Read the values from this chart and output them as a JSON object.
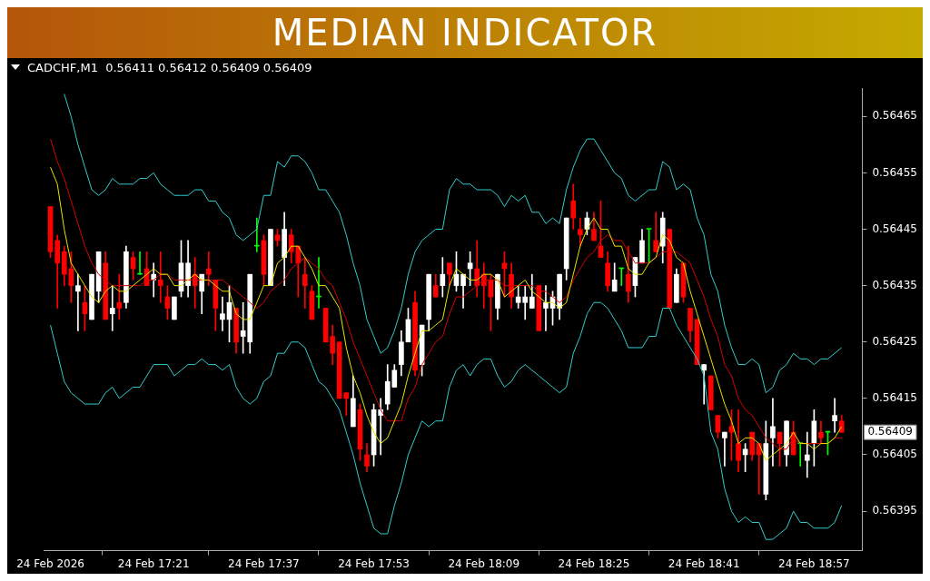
{
  "chart_data": {
    "type": "candlestick",
    "title": "MEDIAN INDICATOR",
    "subtitle": "CADCHF,M1  0.56411 0.56412 0.56409 0.56409",
    "x": [
      "2026-02-24T17:06",
      "2026-02-24T17:07",
      "2026-02-24T17:08",
      "2026-02-24T17:09",
      "2026-02-24T17:10",
      "2026-02-24T17:11",
      "2026-02-24T17:12",
      "2026-02-24T17:13",
      "2026-02-24T17:14",
      "2026-02-24T17:15",
      "2026-02-24T17:16",
      "2026-02-24T17:17",
      "2026-02-24T17:18",
      "2026-02-24T17:19",
      "2026-02-24T17:20",
      "2026-02-24T17:21",
      "2026-02-24T17:22",
      "2026-02-24T17:23",
      "2026-02-24T17:24",
      "2026-02-24T17:25",
      "2026-02-24T17:26",
      "2026-02-24T17:27",
      "2026-02-24T17:28",
      "2026-02-24T17:29",
      "2026-02-24T17:30",
      "2026-02-24T17:31",
      "2026-02-24T17:32",
      "2026-02-24T17:33",
      "2026-02-24T17:34",
      "2026-02-24T17:35",
      "2026-02-24T17:36",
      "2026-02-24T17:37",
      "2026-02-24T17:38",
      "2026-02-24T17:39",
      "2026-02-24T17:40",
      "2026-02-24T17:41",
      "2026-02-24T17:42",
      "2026-02-24T17:43",
      "2026-02-24T17:44",
      "2026-02-24T17:45",
      "2026-02-24T17:46",
      "2026-02-24T17:47",
      "2026-02-24T17:48",
      "2026-02-24T17:49",
      "2026-02-24T17:50",
      "2026-02-24T17:51",
      "2026-02-24T17:52",
      "2026-02-24T17:53",
      "2026-02-24T17:54",
      "2026-02-24T17:55",
      "2026-02-24T17:56",
      "2026-02-24T17:57",
      "2026-02-24T17:58",
      "2026-02-24T17:59",
      "2026-02-24T18:00",
      "2026-02-24T18:01",
      "2026-02-24T18:02",
      "2026-02-24T18:03",
      "2026-02-24T18:04",
      "2026-02-24T18:05",
      "2026-02-24T18:06",
      "2026-02-24T18:07",
      "2026-02-24T18:08",
      "2026-02-24T18:09",
      "2026-02-24T18:10",
      "2026-02-24T18:11",
      "2026-02-24T18:12",
      "2026-02-24T18:13",
      "2026-02-24T18:14",
      "2026-02-24T18:15",
      "2026-02-24T18:16",
      "2026-02-24T18:17",
      "2026-02-24T18:18",
      "2026-02-24T18:19",
      "2026-02-24T18:20",
      "2026-02-24T18:21",
      "2026-02-24T18:22",
      "2026-02-24T18:23",
      "2026-02-24T18:24",
      "2026-02-24T18:25",
      "2026-02-24T18:26",
      "2026-02-24T18:27",
      "2026-02-24T18:28",
      "2026-02-24T18:29",
      "2026-02-24T18:30",
      "2026-02-24T18:31",
      "2026-02-24T18:32",
      "2026-02-24T18:33",
      "2026-02-24T18:34",
      "2026-02-24T18:35",
      "2026-02-24T18:36",
      "2026-02-24T18:37",
      "2026-02-24T18:38",
      "2026-02-24T18:39",
      "2026-02-24T18:40",
      "2026-02-24T18:41",
      "2026-02-24T18:42",
      "2026-02-24T18:43",
      "2026-02-24T18:44",
      "2026-02-24T18:45",
      "2026-02-24T18:46",
      "2026-02-24T18:47",
      "2026-02-24T18:48",
      "2026-02-24T18:49",
      "2026-02-24T18:50",
      "2026-02-24T18:51",
      "2026-02-24T18:52",
      "2026-02-24T18:53",
      "2026-02-24T18:54",
      "2026-02-24T18:55",
      "2026-02-24T18:56",
      "2026-02-24T18:57",
      "2026-02-24T18:58",
      "2026-02-24T18:59",
      "2026-02-24T19:00",
      "2026-02-24T19:01"
    ],
    "ohlc": [
      [
        0.56449,
        0.56449,
        0.5644,
        0.56441
      ],
      [
        0.56443,
        0.56444,
        0.56431,
        0.56439
      ],
      [
        0.56441,
        0.56442,
        0.56435,
        0.56437
      ],
      [
        0.56438,
        0.56441,
        0.56432,
        0.56435
      ],
      [
        0.56434,
        0.56437,
        0.56427,
        0.56435
      ],
      [
        0.56432,
        0.56435,
        0.56427,
        0.5643
      ],
      [
        0.56429,
        0.56437,
        0.56429,
        0.56437
      ],
      [
        0.56434,
        0.56441,
        0.56432,
        0.56441
      ],
      [
        0.56439,
        0.56441,
        0.56429,
        0.56429
      ],
      [
        0.5643,
        0.56435,
        0.56427,
        0.56431
      ],
      [
        0.56432,
        0.56437,
        0.56429,
        0.56431
      ],
      [
        0.56432,
        0.56442,
        0.56431,
        0.56441
      ],
      [
        0.5644,
        0.56441,
        0.56436,
        0.56438
      ],
      [
        0.56437,
        0.56441,
        0.56437,
        0.56437
      ],
      [
        0.56438,
        0.56441,
        0.56435,
        0.56435
      ],
      [
        0.56436,
        0.56439,
        0.56433,
        0.56437
      ],
      [
        0.56436,
        0.56441,
        0.56432,
        0.56435
      ],
      [
        0.56433,
        0.56435,
        0.56429,
        0.56431
      ],
      [
        0.56429,
        0.56433,
        0.56429,
        0.56433
      ],
      [
        0.56434,
        0.56443,
        0.56433,
        0.56439
      ],
      [
        0.56435,
        0.56443,
        0.56433,
        0.56439
      ],
      [
        0.56437,
        0.5644,
        0.56431,
        0.56435
      ],
      [
        0.56434,
        0.56437,
        0.5643,
        0.56437
      ],
      [
        0.56438,
        0.56441,
        0.56435,
        0.56437
      ],
      [
        0.56436,
        0.56436,
        0.56427,
        0.56431
      ],
      [
        0.56429,
        0.56433,
        0.56427,
        0.5643
      ],
      [
        0.56429,
        0.56435,
        0.56425,
        0.56432
      ],
      [
        0.56431,
        0.56431,
        0.56423,
        0.56425
      ],
      [
        0.56426,
        0.56432,
        0.56423,
        0.56427
      ],
      [
        0.56425,
        0.56437,
        0.56423,
        0.56437
      ],
      [
        0.56442,
        0.56447,
        0.56441,
        0.56442
      ],
      [
        0.56443,
        0.56444,
        0.56435,
        0.56437
      ],
      [
        0.56435,
        0.56445,
        0.56435,
        0.56445
      ],
      [
        0.56444,
        0.56445,
        0.56442,
        0.56443
      ],
      [
        0.5644,
        0.56448,
        0.56435,
        0.56445
      ],
      [
        0.56444,
        0.56445,
        0.56439,
        0.56441
      ],
      [
        0.56442,
        0.56442,
        0.56433,
        0.56439
      ],
      [
        0.56437,
        0.5644,
        0.56431,
        0.56435
      ],
      [
        0.56434,
        0.56435,
        0.56429,
        0.56429
      ],
      [
        0.56433,
        0.5644,
        0.56431,
        0.56433
      ],
      [
        0.56431,
        0.56431,
        0.56425,
        0.56425
      ],
      [
        0.56426,
        0.56428,
        0.56421,
        0.56423
      ],
      [
        0.56425,
        0.56425,
        0.56415,
        0.56415
      ],
      [
        0.56416,
        0.56416,
        0.56412,
        0.56415
      ],
      [
        0.5641,
        0.56419,
        0.5641,
        0.56415
      ],
      [
        0.56413,
        0.56414,
        0.56404,
        0.56406
      ],
      [
        0.56405,
        0.56407,
        0.56402,
        0.56403
      ],
      [
        0.56405,
        0.56414,
        0.56403,
        0.56413
      ],
      [
        0.56412,
        0.56415,
        0.56405,
        0.56413
      ],
      [
        0.56414,
        0.56421,
        0.56413,
        0.56418
      ],
      [
        0.56417,
        0.56421,
        0.56417,
        0.5642
      ],
      [
        0.56421,
        0.56427,
        0.56419,
        0.56425
      ],
      [
        0.56425,
        0.56431,
        0.56425,
        0.56429
      ],
      [
        0.56432,
        0.56434,
        0.56419,
        0.5642
      ],
      [
        0.56421,
        0.56428,
        0.56419,
        0.56428
      ],
      [
        0.56429,
        0.56437,
        0.56427,
        0.56437
      ],
      [
        0.56435,
        0.56437,
        0.56433,
        0.56433
      ],
      [
        0.56435,
        0.5644,
        0.56433,
        0.56437
      ],
      [
        0.56439,
        0.56439,
        0.56435,
        0.56437
      ],
      [
        0.56435,
        0.56441,
        0.56434,
        0.56437
      ],
      [
        0.56435,
        0.56437,
        0.56431,
        0.56437
      ],
      [
        0.56438,
        0.56441,
        0.56435,
        0.56439
      ],
      [
        0.56438,
        0.56443,
        0.56433,
        0.56435
      ],
      [
        0.56437,
        0.56439,
        0.56431,
        0.56435
      ],
      [
        0.56436,
        0.56437,
        0.56427,
        0.56433
      ],
      [
        0.56431,
        0.56437,
        0.56429,
        0.56437
      ],
      [
        0.56439,
        0.56441,
        0.56433,
        0.56438
      ],
      [
        0.56437,
        0.56439,
        0.56431,
        0.56433
      ],
      [
        0.56432,
        0.56435,
        0.56431,
        0.56433
      ],
      [
        0.56432,
        0.56435,
        0.56429,
        0.56433
      ],
      [
        0.56431,
        0.56437,
        0.56431,
        0.56433
      ],
      [
        0.56435,
        0.56435,
        0.56427,
        0.56427
      ],
      [
        0.56431,
        0.56435,
        0.56427,
        0.56432
      ],
      [
        0.56431,
        0.56434,
        0.56428,
        0.56433
      ],
      [
        0.56431,
        0.56437,
        0.56429,
        0.56437
      ],
      [
        0.56438,
        0.56447,
        0.56436,
        0.56447
      ],
      [
        0.5645,
        0.56453,
        0.56445,
        0.56447
      ],
      [
        0.56445,
        0.56447,
        0.56442,
        0.56444
      ],
      [
        0.56445,
        0.56448,
        0.56444,
        0.56447
      ],
      [
        0.56445,
        0.56448,
        0.56443,
        0.56443
      ],
      [
        0.56442,
        0.5645,
        0.5644,
        0.5644
      ],
      [
        0.56439,
        0.56441,
        0.56434,
        0.56435
      ],
      [
        0.56434,
        0.56439,
        0.56434,
        0.56436
      ],
      [
        0.56438,
        0.56438,
        0.56435,
        0.56438
      ],
      [
        0.56437,
        0.56442,
        0.56432,
        0.56434
      ],
      [
        0.56435,
        0.5644,
        0.56433,
        0.5644
      ],
      [
        0.56439,
        0.56445,
        0.56439,
        0.56443
      ],
      [
        0.56445,
        0.56445,
        0.56439,
        0.56445
      ],
      [
        0.56443,
        0.56448,
        0.56441,
        0.56441
      ],
      [
        0.56442,
        0.56448,
        0.56439,
        0.56447
      ],
      [
        0.56445,
        0.56445,
        0.56431,
        0.56431
      ],
      [
        0.56432,
        0.56438,
        0.56432,
        0.56437
      ],
      [
        0.56439,
        0.56439,
        0.56432,
        0.56433
      ],
      [
        0.56431,
        0.56431,
        0.56425,
        0.56427
      ],
      [
        0.56429,
        0.56429,
        0.56421,
        0.56421
      ],
      [
        0.5642,
        0.56421,
        0.56414,
        0.56421
      ],
      [
        0.56419,
        0.56419,
        0.56413,
        0.56413
      ],
      [
        0.56412,
        0.56412,
        0.56408,
        0.56409
      ],
      [
        0.56408,
        0.56409,
        0.56403,
        0.56409
      ],
      [
        0.5641,
        0.56413,
        0.56404,
        0.56409
      ],
      [
        0.56407,
        0.56413,
        0.56402,
        0.56404
      ],
      [
        0.56405,
        0.56407,
        0.56402,
        0.56406
      ],
      [
        0.56409,
        0.56409,
        0.56404,
        0.56405
      ],
      [
        0.56407,
        0.56407,
        0.56398,
        0.56405
      ],
      [
        0.56398,
        0.56411,
        0.56397,
        0.56407
      ],
      [
        0.56408,
        0.56415,
        0.56403,
        0.5641
      ],
      [
        0.56409,
        0.56409,
        0.56403,
        0.56407
      ],
      [
        0.56405,
        0.56411,
        0.56403,
        0.56411
      ],
      [
        0.56409,
        0.56411,
        0.56405,
        0.56405
      ],
      [
        0.56407,
        0.56407,
        0.56403,
        0.56407
      ],
      [
        0.56404,
        0.56409,
        0.56401,
        0.56405
      ],
      [
        0.56407,
        0.56413,
        0.56403,
        0.56411
      ],
      [
        0.56409,
        0.56411,
        0.56407,
        0.56408
      ],
      [
        0.56409,
        0.56409,
        0.56405,
        0.56409
      ],
      [
        0.56411,
        0.56415,
        0.56409,
        0.56412
      ],
      [
        0.56411,
        0.56412,
        0.56409,
        0.56409
      ]
    ],
    "colors": [
      "#ff0000",
      "#ff0000",
      "#ff0000",
      "#ff0000",
      "#ffffff",
      "#ff0000",
      "#ffffff",
      "#ffffff",
      "#ff0000",
      "#ffffff",
      "#ff0000",
      "#ffffff",
      "#ff0000",
      "#00ff00",
      "#ff0000",
      "#ffffff",
      "#ff0000",
      "#ff0000",
      "#ffffff",
      "#ffffff",
      "#ffffff",
      "#ff0000",
      "#ffffff",
      "#ff0000",
      "#ff0000",
      "#ffffff",
      "#ffffff",
      "#ff0000",
      "#ffffff",
      "#ffffff",
      "#00ff00",
      "#ff0000",
      "#ffffff",
      "#ff0000",
      "#ffffff",
      "#ff0000",
      "#ff0000",
      "#ff0000",
      "#ff0000",
      "#00ff00",
      "#ff0000",
      "#ff0000",
      "#ff0000",
      "#ff0000",
      "#ffffff",
      "#ff0000",
      "#ff0000",
      "#ffffff",
      "#ffffff",
      "#ffffff",
      "#ffffff",
      "#ffffff",
      "#ffffff",
      "#ff0000",
      "#ffffff",
      "#ffffff",
      "#ff0000",
      "#ffffff",
      "#ff0000",
      "#ffffff",
      "#ffffff",
      "#ffffff",
      "#ff0000",
      "#ff0000",
      "#ff0000",
      "#ffffff",
      "#ff0000",
      "#ff0000",
      "#ffffff",
      "#ffffff",
      "#ffffff",
      "#ff0000",
      "#ffffff",
      "#ffffff",
      "#ffffff",
      "#ffffff",
      "#ff0000",
      "#ff0000",
      "#ffffff",
      "#ff0000",
      "#ff0000",
      "#ff0000",
      "#ffffff",
      "#00ff00",
      "#ff0000",
      "#ffffff",
      "#ffffff",
      "#00ff00",
      "#ff0000",
      "#ffffff",
      "#ff0000",
      "#ffffff",
      "#ff0000",
      "#ff0000",
      "#ff0000",
      "#ffffff",
      "#ff0000",
      "#ff0000",
      "#ffffff",
      "#ff0000",
      "#ff0000",
      "#ffffff",
      "#ff0000",
      "#ff0000",
      "#ffffff",
      "#ffffff",
      "#ff0000",
      "#ffffff",
      "#ff0000",
      "#00ff00",
      "#ffffff",
      "#ffffff",
      "#ff0000",
      "#00ff00",
      "#ffffff",
      "#ff0000"
    ],
    "series": [
      {
        "type": "line",
        "color": "#e6e600",
        "values": [
          0.56456,
          0.56453,
          0.56445,
          0.56439,
          0.56437,
          0.56435,
          0.56433,
          0.56432,
          0.56434,
          0.56435,
          0.56434,
          0.56434,
          0.56435,
          0.56436,
          0.56437,
          0.56438,
          0.56437,
          0.56437,
          0.56435,
          0.56435,
          0.56436,
          0.56437,
          0.56436,
          0.56436,
          0.56435,
          0.56434,
          0.56434,
          0.5643,
          0.56429,
          0.56429,
          0.56432,
          0.56435,
          0.56435,
          0.56439,
          0.5644,
          0.56442,
          0.56442,
          0.5644,
          0.56438,
          0.56435,
          0.56435,
          0.56433,
          0.56431,
          0.56424,
          0.56419,
          0.56416,
          0.56412,
          0.56409,
          0.56407,
          0.56408,
          0.56411,
          0.56414,
          0.56419,
          0.56423,
          0.56427,
          0.56427,
          0.56428,
          0.56429,
          0.56435,
          0.56438,
          0.56437,
          0.56436,
          0.56436,
          0.56437,
          0.56437,
          0.56436,
          0.56433,
          0.56434,
          0.56435,
          0.56436,
          0.56434,
          0.56433,
          0.56432,
          0.56432,
          0.56431,
          0.56432,
          0.56437,
          0.56442,
          0.56445,
          0.56447,
          0.56445,
          0.56445,
          0.56442,
          0.56442,
          0.56438,
          0.56437,
          0.56437,
          0.56439,
          0.5644,
          0.56444,
          0.56443,
          0.5644,
          0.56439,
          0.56434,
          0.5643,
          0.56426,
          0.56422,
          0.56418,
          0.56414,
          0.56411,
          0.56407,
          0.56408,
          0.56408,
          0.56407,
          0.56404,
          0.56405,
          0.56406,
          0.56407,
          0.56409,
          0.56407,
          0.56407,
          0.56406,
          0.56407,
          0.56407,
          0.56408,
          0.5641
        ]
      },
      {
        "type": "line",
        "color": "#d40000",
        "values": [
          0.56461,
          0.56457,
          0.56454,
          0.5645,
          0.56446,
          0.56442,
          0.56439,
          0.56437,
          0.56436,
          0.56435,
          0.56435,
          0.56435,
          0.56435,
          0.56435,
          0.56436,
          0.56436,
          0.56437,
          0.56437,
          0.56436,
          0.56436,
          0.56436,
          0.56436,
          0.56436,
          0.56436,
          0.56436,
          0.56436,
          0.56435,
          0.56434,
          0.56433,
          0.56432,
          0.56431,
          0.56432,
          0.56434,
          0.56435,
          0.56436,
          0.56438,
          0.56439,
          0.5644,
          0.56439,
          0.56438,
          0.56436,
          0.56435,
          0.56432,
          0.56429,
          0.56425,
          0.56422,
          0.56419,
          0.56416,
          0.56413,
          0.56411,
          0.56411,
          0.56411,
          0.56415,
          0.56417,
          0.56421,
          0.56423,
          0.56425,
          0.56426,
          0.5643,
          0.56433,
          0.56433,
          0.56434,
          0.56435,
          0.56436,
          0.56436,
          0.56436,
          0.56435,
          0.56435,
          0.56435,
          0.56435,
          0.56435,
          0.56434,
          0.56434,
          0.56433,
          0.56432,
          0.56433,
          0.56436,
          0.56438,
          0.5644,
          0.56441,
          0.56443,
          0.56444,
          0.56443,
          0.56443,
          0.56441,
          0.56439,
          0.56439,
          0.56439,
          0.5644,
          0.56441,
          0.56441,
          0.56441,
          0.5644,
          0.56439,
          0.56436,
          0.56433,
          0.56429,
          0.56426,
          0.56421,
          0.56419,
          0.56415,
          0.56413,
          0.56412,
          0.5641,
          0.56408,
          0.56407,
          0.56406,
          0.56406,
          0.56408,
          0.56407,
          0.56407,
          0.56407,
          0.56407,
          0.56407,
          0.56408,
          0.56408
        ]
      },
      {
        "type": "line",
        "color": "#33cccc",
        "values": [
          null,
          null,
          0.56469,
          0.56465,
          0.5646,
          0.56456,
          0.56452,
          0.56451,
          0.56452,
          0.56454,
          0.56453,
          0.56453,
          0.56453,
          0.56454,
          0.56454,
          0.56455,
          0.56453,
          0.56452,
          0.56451,
          0.56451,
          0.56451,
          0.56452,
          0.56452,
          0.5645,
          0.5645,
          0.56448,
          0.56447,
          0.56444,
          0.56443,
          0.56444,
          0.56445,
          0.56451,
          0.56451,
          0.56457,
          0.56456,
          0.56458,
          0.56458,
          0.56457,
          0.56455,
          0.56452,
          0.56452,
          0.5645,
          0.56448,
          0.56444,
          0.56439,
          0.56435,
          0.56429,
          0.56426,
          0.56423,
          0.56424,
          0.56427,
          0.56431,
          0.56437,
          0.56441,
          0.56443,
          0.56444,
          0.56445,
          0.56445,
          0.56452,
          0.56454,
          0.56453,
          0.56453,
          0.56452,
          0.56452,
          0.56452,
          0.56451,
          0.56449,
          0.56451,
          0.5645,
          0.56451,
          0.56448,
          0.56448,
          0.56446,
          0.56447,
          0.56446,
          0.56452,
          0.56456,
          0.56459,
          0.56461,
          0.56461,
          0.56459,
          0.56457,
          0.56455,
          0.56454,
          0.56451,
          0.5645,
          0.56451,
          0.56452,
          0.56452,
          0.56457,
          0.56456,
          0.56452,
          0.56453,
          0.56452,
          0.56447,
          0.56444,
          0.56437,
          0.56434,
          0.56428,
          0.56424,
          0.56421,
          0.56421,
          0.56422,
          0.56421,
          0.56416,
          0.56417,
          0.5642,
          0.56421,
          0.56423,
          0.56422,
          0.56422,
          0.56421,
          0.56422,
          0.56422,
          0.56423,
          0.56424
        ]
      },
      {
        "type": "line",
        "color": "#33cccc",
        "values": [
          0.56428,
          0.56423,
          0.56418,
          0.56416,
          0.56415,
          0.56414,
          0.56414,
          0.56414,
          0.56416,
          0.56417,
          0.56415,
          0.56416,
          0.56417,
          0.56417,
          0.56419,
          0.56421,
          0.56421,
          0.56421,
          0.56419,
          0.5642,
          0.56421,
          0.56421,
          0.56422,
          0.56421,
          0.56421,
          0.5642,
          0.56421,
          0.56417,
          0.56415,
          0.56414,
          0.56415,
          0.56418,
          0.56419,
          0.56423,
          0.56423,
          0.56425,
          0.56425,
          0.56424,
          0.56421,
          0.56418,
          0.56417,
          0.56415,
          0.56413,
          0.56409,
          0.56405,
          0.564,
          0.56396,
          0.56392,
          0.56391,
          0.56391,
          0.56396,
          0.564,
          0.56405,
          0.56408,
          0.56411,
          0.5641,
          0.56411,
          0.56411,
          0.56417,
          0.5642,
          0.56421,
          0.56419,
          0.56421,
          0.56422,
          0.56422,
          0.56419,
          0.56417,
          0.56418,
          0.5642,
          0.56421,
          0.5642,
          0.56419,
          0.56418,
          0.56417,
          0.56416,
          0.56417,
          0.56423,
          0.56426,
          0.5643,
          0.56432,
          0.56432,
          0.56431,
          0.56429,
          0.56427,
          0.56424,
          0.56424,
          0.56424,
          0.56426,
          0.56426,
          0.56431,
          0.56431,
          0.56428,
          0.56426,
          0.56424,
          0.56422,
          0.56419,
          0.56409,
          0.56406,
          0.56399,
          0.56395,
          0.56393,
          0.56394,
          0.56393,
          0.56393,
          0.5639,
          0.5639,
          0.56391,
          0.56392,
          0.56395,
          0.56393,
          0.56393,
          0.56392,
          0.56392,
          0.56392,
          0.56393,
          0.56396
        ]
      }
    ],
    "xlim": [
      "2026-02-24T17:05",
      "2026-02-24T19:04"
    ],
    "xticks": [
      {
        "value": "2026-02-24T17:06",
        "label": "24 Feb 2026"
      },
      {
        "value": "2026-02-24T17:21",
        "label": "24 Feb 17:21"
      },
      {
        "value": "2026-02-24T17:37",
        "label": "24 Feb 17:37"
      },
      {
        "value": "2026-02-24T17:53",
        "label": "24 Feb 17:53"
      },
      {
        "value": "2026-02-24T18:09",
        "label": "24 Feb 18:09"
      },
      {
        "value": "2026-02-24T18:25",
        "label": "24 Feb 18:25"
      },
      {
        "value": "2026-02-24T18:41",
        "label": "24 Feb 18:41"
      },
      {
        "value": "2026-02-24T18:57",
        "label": "24 Feb 18:57"
      }
    ],
    "ylim": [
      0.56388,
      0.5647
    ],
    "yticks": [
      0.56395,
      0.56405,
      0.56415,
      0.56425,
      0.56435,
      0.56445,
      0.56455,
      0.56465
    ],
    "annotations": [
      "0.56409"
    ],
    "grid": false
  }
}
